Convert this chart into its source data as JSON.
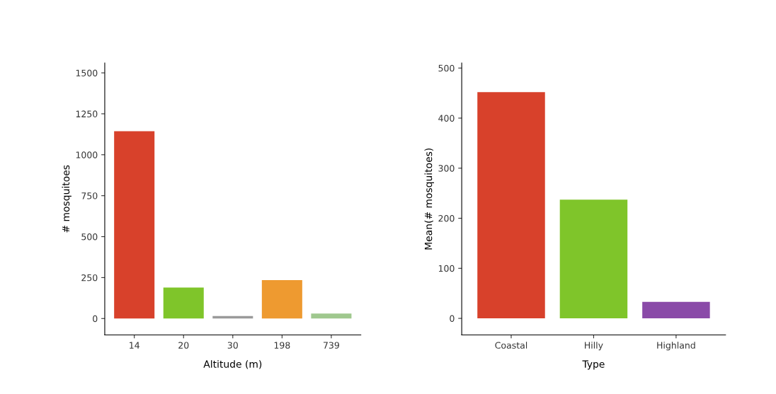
{
  "chart_data": [
    {
      "type": "bar",
      "xlabel": "Altitude (m)",
      "ylabel": "# mosquitoes",
      "categories": [
        "14",
        "20",
        "30",
        "198",
        "739"
      ],
      "values": [
        1144,
        189,
        15,
        235,
        30
      ],
      "colors": [
        "#d8412b",
        "#7fc52a",
        "#9a9a9a",
        "#ee9a30",
        "#9fc88e"
      ],
      "ylim": [
        -100,
        1560
      ],
      "yticks": [
        0,
        250,
        500,
        750,
        1000,
        1250,
        1500
      ],
      "grid": false,
      "legend": false
    },
    {
      "type": "bar",
      "xlabel": "Type",
      "ylabel": "Mean(# mosquitoes)",
      "categories": [
        "Coastal",
        "Hilly",
        "Highland"
      ],
      "values": [
        452,
        237,
        33
      ],
      "colors": [
        "#d8412b",
        "#7fc52a",
        "#8a4aa8"
      ],
      "ylim": [
        -33,
        510
      ],
      "yticks": [
        0,
        100,
        200,
        300,
        400,
        500
      ],
      "grid": false,
      "legend": false
    }
  ]
}
